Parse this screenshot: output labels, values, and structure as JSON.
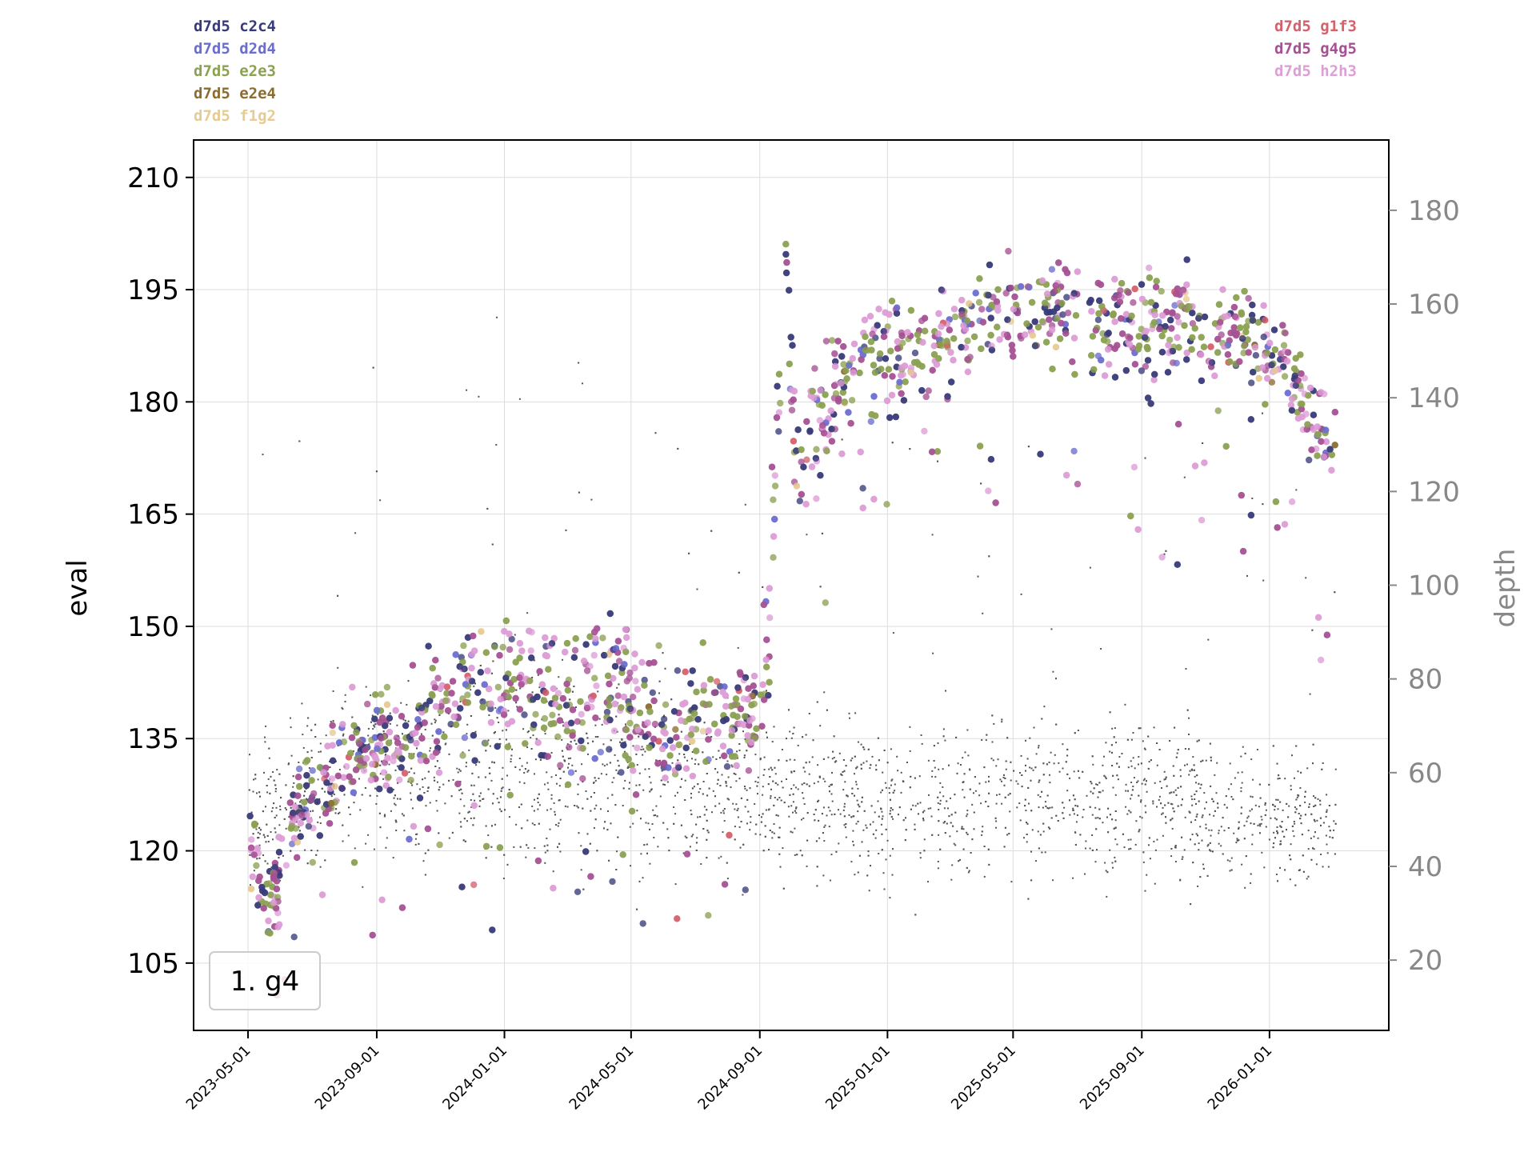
{
  "chart_data": {
    "type": "scatter",
    "title": "",
    "xlabel": "",
    "ylabel": "eval",
    "y2label": "depth",
    "annotation": "1. g4",
    "x_range": [
      "2023-03-10",
      "2026-04-25"
    ],
    "ylim": [
      96,
      215
    ],
    "y2lim": [
      5,
      195
    ],
    "x_ticks": [
      "2023-05-01",
      "2023-09-01",
      "2024-01-01",
      "2024-05-01",
      "2024-09-01",
      "2025-01-01",
      "2025-05-01",
      "2025-09-01",
      "2026-01-01"
    ],
    "y_ticks": [
      105,
      120,
      135,
      150,
      165,
      180,
      195,
      210
    ],
    "y2_ticks": [
      20,
      40,
      60,
      80,
      100,
      120,
      140,
      160,
      180
    ],
    "grid": true,
    "depth_color": "#555555",
    "legend_left": [
      {
        "name": "d7d5  c2c4",
        "color": "#393b79"
      },
      {
        "name": "d7d5  d2d4",
        "color": "#6b6ecf"
      },
      {
        "name": "d7d5  e2e3",
        "color": "#8ca252"
      },
      {
        "name": "d7d5  e2e4",
        "color": "#8c6d31"
      },
      {
        "name": "d7d5  f1g2",
        "color": "#e7cb94"
      }
    ],
    "legend_right": [
      {
        "name": "d7d5  g1f3",
        "color": "#d6616b"
      },
      {
        "name": "d7d5  g4g5",
        "color": "#a55194"
      },
      {
        "name": "d7d5  h2h3",
        "color": "#de9ed6"
      }
    ],
    "eval_trend": [
      {
        "x": "2023-05-01",
        "y": 124,
        "spread": 6
      },
      {
        "x": "2023-05-20",
        "y": 112,
        "spread": 8
      },
      {
        "x": "2023-06-15",
        "y": 124,
        "spread": 8
      },
      {
        "x": "2023-07-15",
        "y": 130,
        "spread": 7
      },
      {
        "x": "2023-08-15",
        "y": 134,
        "spread": 8
      },
      {
        "x": "2023-09-15",
        "y": 134,
        "spread": 9
      },
      {
        "x": "2023-10-20",
        "y": 138,
        "spread": 9
      },
      {
        "x": "2023-12-01",
        "y": 142,
        "spread": 10
      },
      {
        "x": "2024-01-15",
        "y": 143,
        "spread": 11
      },
      {
        "x": "2024-03-01",
        "y": 140,
        "spread": 11
      },
      {
        "x": "2024-04-15",
        "y": 142,
        "spread": 11
      },
      {
        "x": "2024-06-01",
        "y": 137,
        "spread": 10
      },
      {
        "x": "2024-07-15",
        "y": 138,
        "spread": 9
      },
      {
        "x": "2024-08-30",
        "y": 140,
        "spread": 8
      },
      {
        "x": "2024-09-10",
        "y": 150,
        "spread": 15
      },
      {
        "x": "2024-09-25",
        "y": 200,
        "spread": 6
      },
      {
        "x": "2024-10-05",
        "y": 172,
        "spread": 12
      },
      {
        "x": "2024-11-15",
        "y": 182,
        "spread": 9
      },
      {
        "x": "2024-12-20",
        "y": 186,
        "spread": 9
      },
      {
        "x": "2025-02-01",
        "y": 186,
        "spread": 10
      },
      {
        "x": "2025-04-01",
        "y": 192,
        "spread": 8
      },
      {
        "x": "2025-06-01",
        "y": 193,
        "spread": 8
      },
      {
        "x": "2025-08-01",
        "y": 190,
        "spread": 9
      },
      {
        "x": "2025-10-01",
        "y": 190,
        "spread": 9
      },
      {
        "x": "2025-12-01",
        "y": 189,
        "spread": 9
      },
      {
        "x": "2026-01-15",
        "y": 186,
        "spread": 7
      },
      {
        "x": "2026-02-20",
        "y": 176,
        "spread": 8
      },
      {
        "x": "2026-03-05",
        "y": 174,
        "spread": 7
      }
    ],
    "depth_trend": [
      {
        "x": "2023-05-01",
        "y": 50,
        "spread": 18
      },
      {
        "x": "2023-08-01",
        "y": 60,
        "spread": 25
      },
      {
        "x": "2024-01-01",
        "y": 62,
        "spread": 28
      },
      {
        "x": "2024-05-01",
        "y": 58,
        "spread": 25
      },
      {
        "x": "2024-09-01",
        "y": 55,
        "spread": 22
      },
      {
        "x": "2025-01-01",
        "y": 55,
        "spread": 22
      },
      {
        "x": "2025-05-01",
        "y": 55,
        "spread": 22
      },
      {
        "x": "2025-09-01",
        "y": 55,
        "spread": 22
      },
      {
        "x": "2026-01-01",
        "y": 50,
        "spread": 20
      },
      {
        "x": "2026-03-05",
        "y": 50,
        "spread": 18
      }
    ]
  }
}
